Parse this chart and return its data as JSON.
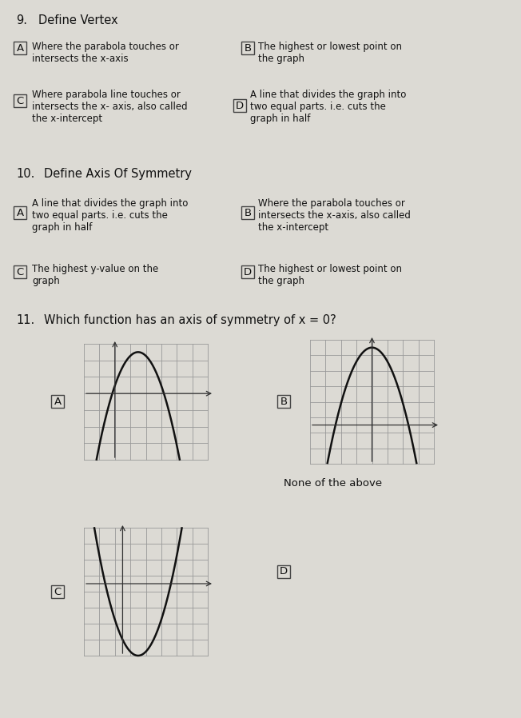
{
  "bg_color": "#dcdad4",
  "q9_number": "9.",
  "q9_title": "Define Vertex",
  "q9_A_text": "Where the parabola touches or\nintersects the x-axis",
  "q9_B_text": "The highest or lowest point on\nthe graph",
  "q9_C_text": "Where parabola line touches or\nintersects the x- axis, also called\nthe x-intercept",
  "q9_D_text": "A line that divides the graph into\ntwo equal parts. i.e. cuts the\ngraph in half",
  "q10_number": "10.",
  "q10_title": "Define Axis Of Symmetry",
  "q10_A_text": "A line that divides the graph into\ntwo equal parts. i.e. cuts the\ngraph in half",
  "q10_B_text": "Where the parabola touches or\nintersects the x-axis, also called\nthe x-intercept",
  "q10_C_text": "The highest y-value on the\ngraph",
  "q10_D_text": "The highest or lowest point on\nthe graph",
  "q11_number": "11.",
  "q11_title": "Which function has an axis of symmetry of x = 0?",
  "q11_none": "None of the above",
  "label_fontsize": 8.5,
  "title_fontsize": 10.5,
  "qnum_fontsize": 10.5
}
